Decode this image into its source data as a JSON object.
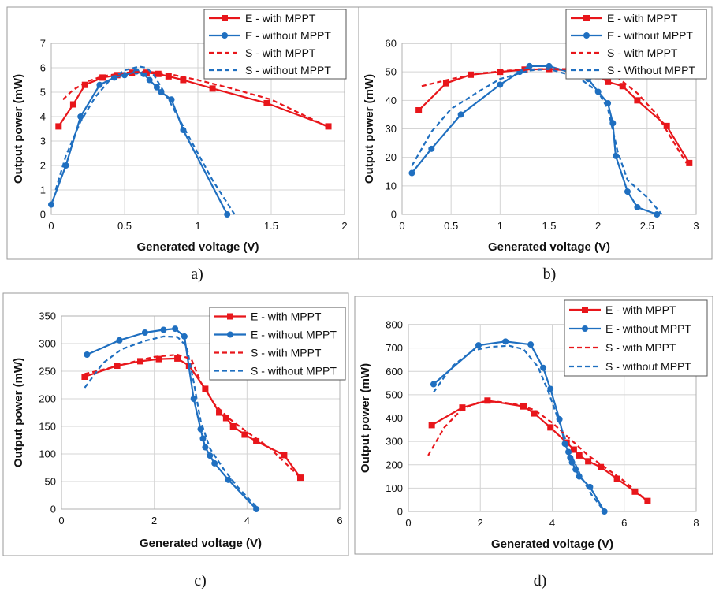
{
  "colors": {
    "red": "#e8161b",
    "blue": "#1f6fc0",
    "grid": "#d4d4d4",
    "frame": "#9a9a9a"
  },
  "chart_data": [
    {
      "type": "line",
      "caption": "a)",
      "xlabel": "Generated voltage (V)",
      "ylabel": "Output power (mW)",
      "xlim": [
        0,
        2
      ],
      "ylim": [
        0,
        7
      ],
      "xticks": [
        0,
        0.5,
        1,
        1.5,
        2
      ],
      "xtick_labels": [
        "0",
        "0.5",
        "1",
        "1.5",
        "2"
      ],
      "yticks": [
        0,
        1,
        2,
        3,
        4,
        5,
        6,
        7
      ],
      "ytick_labels": [
        "0",
        "1",
        "2",
        "3",
        "4",
        "5",
        "6",
        "7"
      ],
      "legend": "top-right",
      "series": [
        {
          "name": "E - with MPPT",
          "style": "solid-square",
          "color": "red",
          "x": [
            0.05,
            0.15,
            0.23,
            0.35,
            0.45,
            0.55,
            0.65,
            0.73,
            0.8,
            0.9,
            1.1,
            1.47,
            1.89
          ],
          "y": [
            3.6,
            4.5,
            5.3,
            5.6,
            5.7,
            5.8,
            5.8,
            5.75,
            5.65,
            5.5,
            5.15,
            4.55,
            3.6
          ]
        },
        {
          "name": "E - without MPPT",
          "style": "solid-circle",
          "color": "blue",
          "x": [
            0,
            0.1,
            0.2,
            0.33,
            0.43,
            0.5,
            0.58,
            0.63,
            0.67,
            0.72,
            0.75,
            0.82,
            0.9,
            1.2
          ],
          "y": [
            0.4,
            2.0,
            4.0,
            5.3,
            5.6,
            5.7,
            5.85,
            5.75,
            5.5,
            5.2,
            5.0,
            4.7,
            3.45,
            0
          ]
        },
        {
          "name": "S - with MPPT",
          "style": "dashed",
          "color": "red",
          "x": [
            0.08,
            0.15,
            0.25,
            0.35,
            0.5,
            0.65,
            0.8,
            1.0,
            1.2,
            1.5,
            1.88
          ],
          "y": [
            4.7,
            5.1,
            5.45,
            5.65,
            5.8,
            5.85,
            5.75,
            5.5,
            5.2,
            4.7,
            3.6
          ]
        },
        {
          "name": "S - without MPPT",
          "style": "dashed",
          "color": "blue",
          "x": [
            0.03,
            0.1,
            0.2,
            0.3,
            0.4,
            0.5,
            0.6,
            0.65,
            0.7,
            0.8,
            0.9,
            1.0,
            1.1,
            1.25
          ],
          "y": [
            1.0,
            2.4,
            3.8,
            4.8,
            5.5,
            5.9,
            6.05,
            6.0,
            5.7,
            4.7,
            3.6,
            2.5,
            1.4,
            0
          ]
        }
      ]
    },
    {
      "type": "line",
      "caption": "b)",
      "xlabel": "Generated voltage (V)",
      "ylabel": "Output power (mW)",
      "xlim": [
        0,
        3
      ],
      "ylim": [
        0,
        60
      ],
      "xticks": [
        0,
        0.5,
        1,
        1.5,
        2,
        2.5,
        3
      ],
      "xtick_labels": [
        "0",
        "0.5",
        "1",
        "1.5",
        "2",
        "2.5",
        "3"
      ],
      "yticks": [
        0,
        10,
        20,
        30,
        40,
        50,
        60
      ],
      "ytick_labels": [
        "0",
        "10",
        "20",
        "30",
        "40",
        "50",
        "60"
      ],
      "legend": "top-right",
      "series": [
        {
          "name": "E - with MPPT",
          "style": "solid-square",
          "color": "red",
          "x": [
            0.17,
            0.45,
            0.7,
            1.0,
            1.25,
            1.5,
            1.7,
            2.0,
            2.1,
            2.25,
            2.4,
            2.7,
            2.93
          ],
          "y": [
            36.5,
            46,
            49,
            50,
            50.8,
            51,
            50.5,
            48.5,
            46.5,
            45,
            40,
            31,
            18
          ]
        },
        {
          "name": "E - without MPPT",
          "style": "solid-circle",
          "color": "blue",
          "x": [
            0.1,
            0.3,
            0.6,
            1.0,
            1.2,
            1.3,
            1.5,
            1.8,
            1.9,
            2.0,
            2.1,
            2.15,
            2.18,
            2.3,
            2.4,
            2.6
          ],
          "y": [
            14.5,
            23,
            35,
            45.5,
            50,
            52,
            52,
            49,
            47.5,
            43,
            39,
            32,
            20.5,
            8,
            2.5,
            0
          ]
        },
        {
          "name": "S - with MPPT",
          "style": "dashed",
          "color": "red",
          "x": [
            0.2,
            0.5,
            0.8,
            1.1,
            1.4,
            1.7,
            2.0,
            2.2,
            2.4,
            2.6,
            2.9
          ],
          "y": [
            45,
            47.5,
            49.5,
            50.5,
            51,
            51,
            50,
            48,
            42.5,
            35,
            18
          ]
        },
        {
          "name": "S - Without MPPT",
          "style": "dashed",
          "color": "blue",
          "x": [
            0.1,
            0.3,
            0.5,
            0.8,
            1.0,
            1.3,
            1.5,
            1.8,
            2.0,
            2.1,
            2.2,
            2.3,
            2.5,
            2.65
          ],
          "y": [
            17,
            29,
            37,
            43.5,
            47.5,
            50.5,
            51,
            48,
            43,
            37,
            22,
            12,
            6,
            0
          ]
        }
      ]
    },
    {
      "type": "line",
      "caption": "c)",
      "xlabel": "Generated voltage (V)",
      "ylabel": "Output power (mW)",
      "xlim": [
        0,
        6
      ],
      "ylim": [
        0,
        350
      ],
      "xticks": [
        0,
        2,
        4,
        6
      ],
      "xtick_labels": [
        "0",
        "2",
        "4",
        "6"
      ],
      "yticks": [
        0,
        50,
        100,
        150,
        200,
        250,
        300,
        350
      ],
      "ytick_labels": [
        "0",
        "50",
        "100",
        "150",
        "200",
        "250",
        "300",
        "350"
      ],
      "legend": "top-right",
      "series": [
        {
          "name": "E - with MPPT",
          "style": "solid-square",
          "color": "red",
          "x": [
            0.5,
            1.2,
            1.7,
            2.1,
            2.5,
            2.75,
            3.1,
            3.4,
            3.55,
            3.7,
            3.95,
            4.2,
            4.8,
            5.15
          ],
          "y": [
            240,
            260,
            268,
            272,
            273,
            260,
            218,
            175,
            165,
            150,
            135,
            123,
            98,
            57
          ]
        },
        {
          "name": "E - without MPPT",
          "style": "solid-circle",
          "color": "blue",
          "x": [
            0.55,
            1.25,
            1.8,
            2.2,
            2.45,
            2.65,
            2.85,
            3.0,
            3.05,
            3.1,
            3.2,
            3.3,
            3.6,
            4.2
          ],
          "y": [
            280,
            306,
            320,
            325,
            327,
            313,
            200,
            145,
            128,
            112,
            97,
            83,
            53,
            0
          ]
        },
        {
          "name": "S - with MPPT",
          "style": "dashed",
          "color": "red",
          "x": [
            0.5,
            1.0,
            1.5,
            2.0,
            2.5,
            2.8,
            3.0,
            3.3,
            3.6,
            4.0,
            4.5,
            5.15
          ],
          "y": [
            245,
            255,
            266,
            276,
            280,
            272,
            230,
            190,
            165,
            140,
            110,
            57
          ]
        },
        {
          "name": "S - without MPPT",
          "style": "dashed",
          "color": "blue",
          "x": [
            0.5,
            0.9,
            1.3,
            1.8,
            2.2,
            2.5,
            2.7,
            2.85,
            3.0,
            3.2,
            3.5,
            3.8,
            4.25
          ],
          "y": [
            220,
            265,
            290,
            305,
            313,
            312,
            295,
            230,
            160,
            110,
            72,
            40,
            0
          ]
        }
      ]
    },
    {
      "type": "line",
      "caption": "d)",
      "xlabel": "Generated voltage (V)",
      "ylabel": "Output power (mW)",
      "xlim": [
        0,
        8
      ],
      "ylim": [
        0,
        800
      ],
      "xticks": [
        0,
        2,
        4,
        6,
        8
      ],
      "xtick_labels": [
        "0",
        "2",
        "4",
        "6",
        "8"
      ],
      "yticks": [
        0,
        100,
        200,
        300,
        400,
        500,
        600,
        700,
        800
      ],
      "ytick_labels": [
        "0",
        "100",
        "200",
        "300",
        "400",
        "500",
        "600",
        "700",
        "800"
      ],
      "legend": "top-right",
      "series": [
        {
          "name": "E - with MPPT",
          "style": "solid-square",
          "color": "red",
          "x": [
            0.65,
            1.5,
            2.2,
            3.2,
            3.5,
            3.95,
            4.4,
            4.6,
            4.75,
            5.0,
            5.35,
            5.8,
            6.3,
            6.65
          ],
          "y": [
            370,
            445,
            475,
            450,
            420,
            360,
            295,
            265,
            240,
            215,
            190,
            140,
            85,
            45
          ]
        },
        {
          "name": "E - without MPPT",
          "style": "solid-circle",
          "color": "blue",
          "x": [
            0.7,
            1.95,
            2.7,
            3.4,
            3.75,
            3.95,
            4.2,
            4.35,
            4.45,
            4.5,
            4.55,
            4.65,
            4.75,
            5.05,
            5.45
          ],
          "y": [
            545,
            712,
            728,
            715,
            615,
            525,
            395,
            290,
            255,
            230,
            210,
            180,
            150,
            105,
            0
          ]
        },
        {
          "name": "S - with MPPT",
          "style": "dashed",
          "color": "red",
          "x": [
            0.55,
            1.0,
            1.5,
            2.0,
            2.5,
            3.0,
            3.5,
            4.0,
            4.5,
            5.0,
            5.5,
            6.0,
            6.6
          ],
          "y": [
            240,
            360,
            440,
            470,
            470,
            458,
            435,
            380,
            310,
            240,
            185,
            130,
            50
          ]
        },
        {
          "name": "S - without MPPT",
          "style": "dashed",
          "color": "blue",
          "x": [
            0.7,
            1.2,
            1.8,
            2.3,
            2.8,
            3.2,
            3.6,
            3.9,
            4.2,
            4.5,
            4.8,
            5.1,
            5.45
          ],
          "y": [
            510,
            620,
            690,
            705,
            710,
            695,
            620,
            510,
            380,
            250,
            150,
            70,
            0
          ]
        }
      ]
    }
  ]
}
